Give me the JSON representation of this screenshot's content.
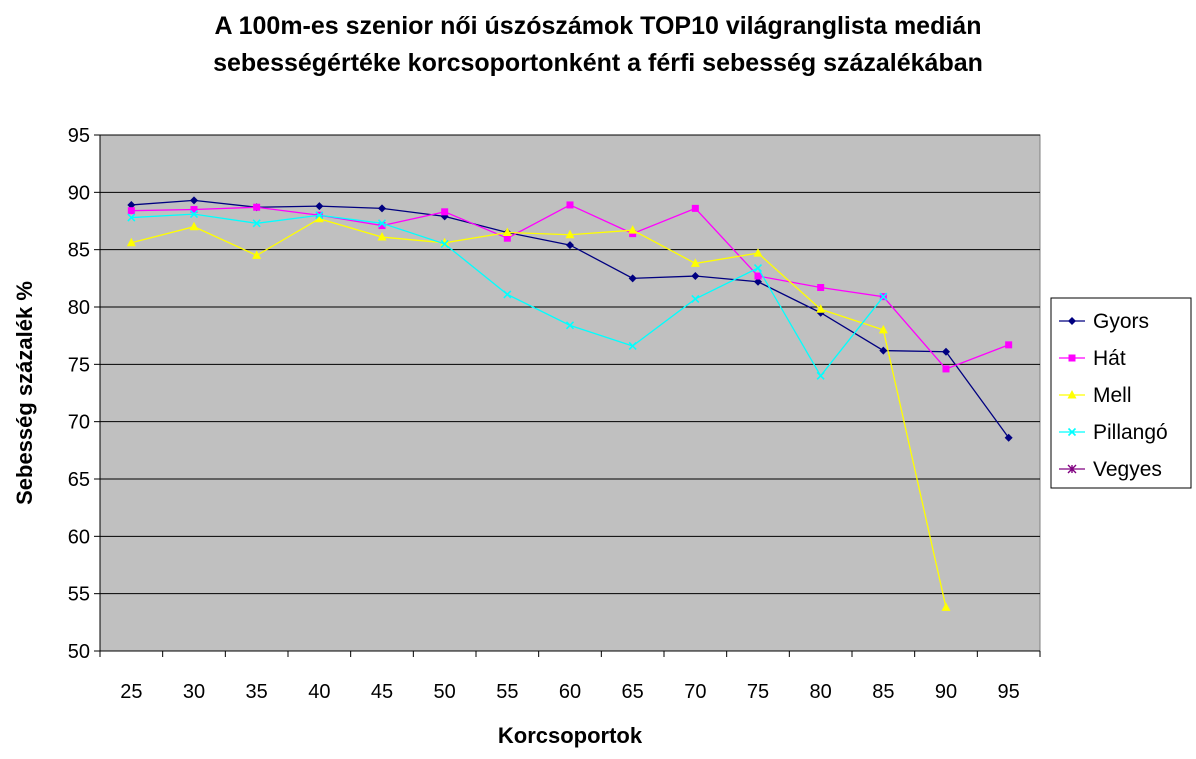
{
  "chart_data": {
    "type": "line",
    "title_lines": [
      "A 100m-es szenior női úszószámok TOP10 világranglista medián",
      "sebességértéke korcsoportonként a férfi sebesség százalékában"
    ],
    "xlabel": "Korcsoportok",
    "ylabel": "Sebesség százalék %",
    "categories": [
      "25",
      "30",
      "35",
      "40",
      "45",
      "50",
      "55",
      "60",
      "65",
      "70",
      "75",
      "80",
      "85",
      "90",
      "95"
    ],
    "ylim": [
      50,
      95
    ],
    "ytick_step": 5,
    "grid": true,
    "plot_background": "#c0c0c0",
    "legend_position": "right",
    "series": [
      {
        "name": "Gyors",
        "color": "#000080",
        "marker": "diamond",
        "values": [
          88.9,
          89.3,
          88.7,
          88.8,
          88.6,
          87.9,
          86.5,
          85.4,
          82.5,
          82.7,
          82.2,
          79.5,
          76.2,
          76.1,
          68.6
        ]
      },
      {
        "name": "Hát",
        "color": "#ff00ff",
        "marker": "square",
        "values": [
          88.4,
          88.5,
          88.7,
          88.0,
          87.1,
          88.3,
          86.0,
          88.9,
          86.4,
          88.6,
          82.7,
          81.7,
          80.9,
          74.6,
          76.7
        ]
      },
      {
        "name": "Mell",
        "color": "#ffff00",
        "marker": "triangle",
        "values": [
          85.6,
          87.0,
          84.5,
          87.7,
          86.1,
          85.6,
          86.5,
          86.3,
          86.7,
          83.8,
          84.7,
          79.8,
          78.0,
          53.8,
          null
        ]
      },
      {
        "name": "Pillangó",
        "color": "#00ffff",
        "marker": "x",
        "values": [
          87.8,
          88.1,
          87.3,
          88.0,
          87.3,
          85.5,
          81.1,
          78.4,
          76.6,
          80.7,
          83.4,
          74.0,
          80.9,
          null,
          null
        ]
      },
      {
        "name": "Vegyes",
        "color": "#800080",
        "marker": "star",
        "values": [
          null,
          null,
          null,
          null,
          null,
          null,
          null,
          null,
          null,
          null,
          null,
          null,
          null,
          null,
          null
        ]
      }
    ]
  }
}
